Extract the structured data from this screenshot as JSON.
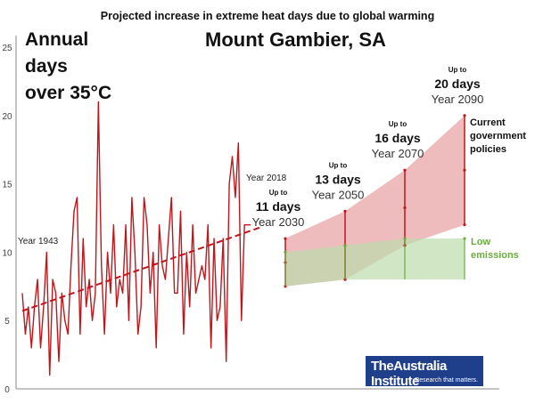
{
  "chart_data": {
    "type": "line",
    "title": "Projected increase in extreme heat days due to global warming",
    "subtitle_lines": [
      "Annual",
      "days",
      "over 35°C"
    ],
    "location": "Mount Gambier, SA",
    "ylim": [
      0,
      25
    ],
    "xlim": [
      1943,
      2090
    ],
    "y_ticks": [
      0,
      5,
      10,
      15,
      20,
      25
    ],
    "series": [
      {
        "x": [
          1943,
          1944,
          1945,
          1946,
          1947,
          1948,
          1949,
          1950,
          1951,
          1952,
          1953,
          1954,
          1955,
          1956,
          1957,
          1958,
          1959,
          1960,
          1961,
          1962,
          1963,
          1964,
          1965,
          1966,
          1967,
          1968,
          1969,
          1970,
          1971,
          1972,
          1973,
          1974,
          1975,
          1976,
          1977,
          1978,
          1979,
          1980,
          1981,
          1982,
          1983,
          1984,
          1985,
          1986,
          1987,
          1988,
          1989,
          1990,
          1991,
          1992,
          1993,
          1994,
          1995,
          1996,
          1997,
          1998,
          1999,
          2000,
          2001,
          2002,
          2003,
          2004,
          2005,
          2006,
          2007,
          2008,
          2009,
          2010,
          2011,
          2012,
          2013,
          2014,
          2015,
          2016,
          2017,
          2018
        ],
        "values": [
          7,
          4,
          6,
          3,
          6,
          8,
          3,
          6,
          10,
          1,
          8,
          7,
          2,
          7,
          5,
          4,
          9,
          13,
          14,
          4,
          11,
          6,
          8,
          5,
          7,
          21,
          9,
          4,
          10,
          7,
          12,
          6,
          8,
          7,
          12,
          5,
          14,
          10,
          4,
          6,
          14,
          12,
          7,
          10,
          3,
          12,
          9,
          8,
          11,
          14,
          7,
          7,
          13,
          4,
          10,
          6,
          12,
          7,
          8,
          9,
          8,
          12,
          3,
          11,
          5,
          6,
          11,
          2,
          15,
          17,
          14,
          18,
          5,
          12,
          12,
          12
        ],
        "color": "#c0161b"
      }
    ],
    "trend": {
      "start": [
        1943,
        5.7
      ],
      "end": [
        2018,
        11.6
      ],
      "color": "#c0161b"
    },
    "annotations": {
      "start_label": "Year 1943",
      "end_label": "Year 2018"
    },
    "projections": [
      {
        "year": 2030,
        "up_to": "Up to",
        "days_label": "11 days",
        "year_label": "Year 2030",
        "policy_range": [
          7.5,
          11
        ],
        "low_range": [
          7.5,
          10
        ]
      },
      {
        "year": 2050,
        "up_to": "Up to",
        "days_label": "13 days",
        "year_label": "Year 2050",
        "policy_range": [
          8,
          13
        ],
        "low_range": [
          8,
          10.5
        ]
      },
      {
        "year": 2070,
        "up_to": "Up to",
        "days_label": "16 days",
        "year_label": "Year 2070",
        "policy_range": [
          10.5,
          16
        ],
        "low_range": [
          8,
          11
        ]
      },
      {
        "year": 2090,
        "up_to": "Up to",
        "days_label": "20 days",
        "year_label": "Year 2090",
        "policy_range": [
          12,
          20
        ],
        "low_range": [
          8,
          11
        ]
      }
    ],
    "scenario_labels": {
      "policies": [
        "Current",
        "government",
        "policies"
      ],
      "low": [
        "Low",
        "emissions"
      ]
    },
    "colors": {
      "policy_fill": "#e8a0a2",
      "low_fill": "#bcdcab",
      "low_text": "#6aab3f",
      "axis": "#888888"
    }
  },
  "logo": {
    "name": "TheAustralia Institute",
    "tagline": "Research that matters."
  }
}
